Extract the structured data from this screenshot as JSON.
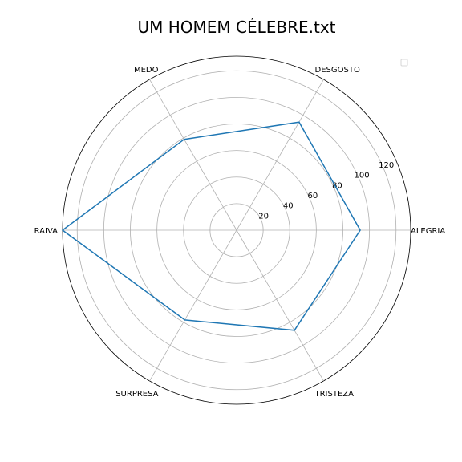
{
  "chart_data": {
    "type": "radar",
    "title": "UM HOMEM CÉLEBRE.txt",
    "categories": [
      "ALEGRIA",
      "DESGOSTO",
      "MEDO",
      "RAIVA",
      "SURPRESA",
      "TRISTEZA"
    ],
    "series": [
      {
        "values": [
          93,
          94,
          79,
          131,
          78,
          87
        ]
      }
    ],
    "rlim": [
      0,
      131
    ],
    "rticks": [
      20,
      40,
      60,
      80,
      100,
      120
    ],
    "grid": true,
    "legend": "top-right",
    "colors": {
      "series": "#1f77b4",
      "grid": "#b0b0b0",
      "frame": "#000000"
    }
  }
}
